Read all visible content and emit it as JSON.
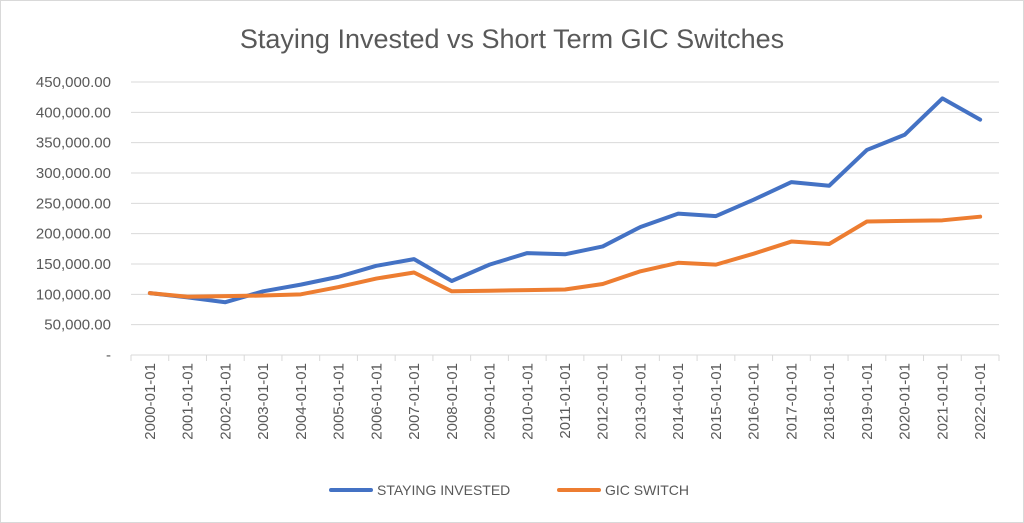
{
  "chart_data": {
    "type": "line",
    "title": "Staying Invested vs Short Term GIC Switches",
    "xlabel": "",
    "ylabel": "",
    "ylim": [
      0,
      450000
    ],
    "yticks": [
      0,
      50000,
      100000,
      150000,
      200000,
      250000,
      300000,
      350000,
      400000,
      450000
    ],
    "ytick_labels": [
      "-",
      "50,000.00",
      "100,000.00",
      "150,000.00",
      "200,000.00",
      "250,000.00",
      "300,000.00",
      "350,000.00",
      "400,000.00",
      "450,000.00"
    ],
    "categories": [
      "2000-01-01",
      "2001-01-01",
      "2002-01-01",
      "2003-01-01",
      "2004-01-01",
      "2005-01-01",
      "2006-01-01",
      "2007-01-01",
      "2008-01-01",
      "2009-01-01",
      "2010-01-01",
      "2011-01-01",
      "2012-01-01",
      "2013-01-01",
      "2014-01-01",
      "2015-01-01",
      "2016-01-01",
      "2017-01-01",
      "2018-01-01",
      "2019-01-01",
      "2020-01-01",
      "2021-01-01",
      "2022-01-01"
    ],
    "series": [
      {
        "name": "STAYING INVESTED",
        "color": "#4472c4",
        "values": [
          102000,
          95000,
          87000,
          105000,
          116000,
          129000,
          147000,
          158000,
          122000,
          149000,
          168000,
          166000,
          179000,
          211000,
          233000,
          229000,
          256000,
          285000,
          279000,
          338000,
          363000,
          423000,
          388000
        ]
      },
      {
        "name": "GIC SWITCH",
        "color": "#ed7d31",
        "values": [
          102000,
          96000,
          97000,
          98000,
          100000,
          112000,
          126000,
          136000,
          105000,
          106000,
          107000,
          108000,
          117000,
          138000,
          152000,
          149000,
          167000,
          187000,
          183000,
          220000,
          221000,
          222000,
          228000
        ]
      }
    ],
    "grid": true,
    "legend_position": "bottom"
  }
}
